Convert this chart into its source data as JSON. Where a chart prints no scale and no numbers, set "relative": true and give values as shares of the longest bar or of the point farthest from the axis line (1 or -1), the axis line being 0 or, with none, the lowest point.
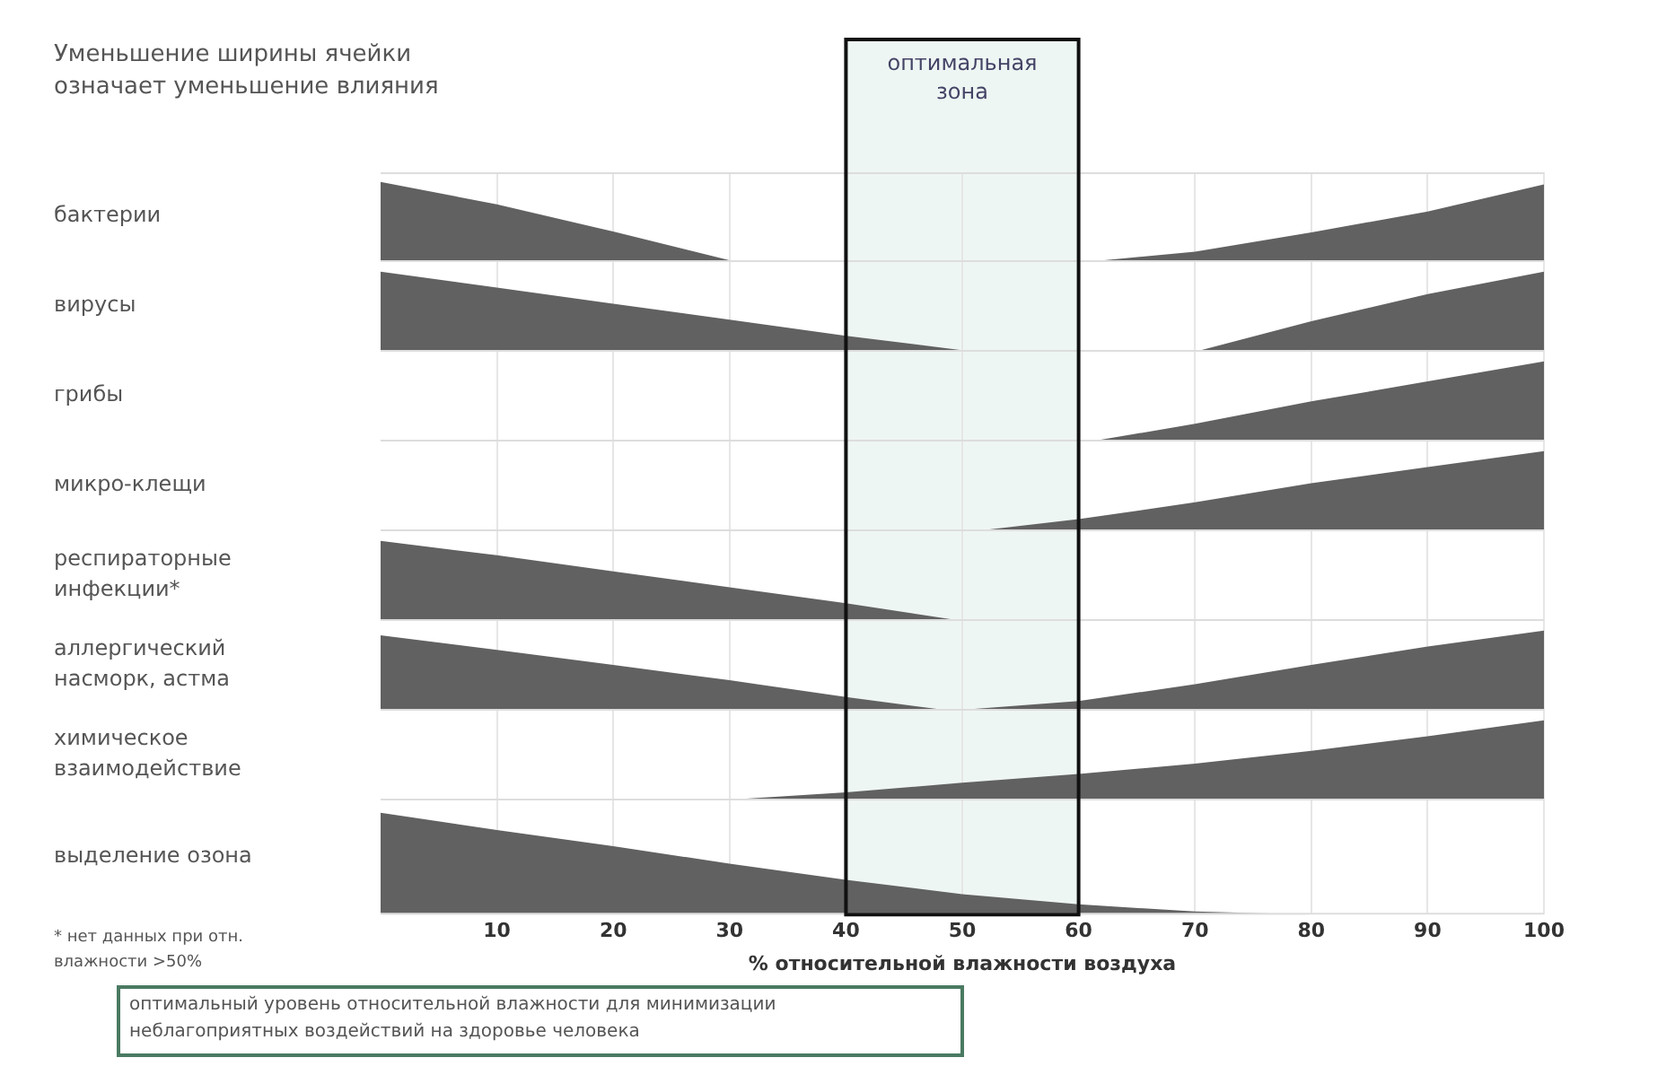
{
  "chart_data": [
    {
      "type": "area",
      "relative": true,
      "title": "Уменьшение ширины ячейки означает уменьшение влияния",
      "ylabel": "бактерии",
      "xlim": [
        0,
        100
      ],
      "xticks": [
        10,
        20,
        30,
        40,
        50,
        60,
        70,
        80,
        90,
        100
      ],
      "grid": "x",
      "tick_labels": false,
      "bands": [
        {
          "axis": "x",
          "from": 40,
          "to": 60,
          "label": "оптимальная зона",
          "color": "#eef6f3"
        }
      ],
      "series": [
        {
          "color": "#616161",
          "x": [
            0,
            10,
            20,
            30.6
          ],
          "values": [
            1,
            0.72,
            0.38,
            0
          ]
        },
        {
          "color": "#616161",
          "x": [
            60.6,
            70,
            80,
            90,
            100
          ],
          "values": [
            0,
            0.13,
            0.37,
            0.63,
            0.97
          ]
        }
      ]
    },
    {
      "type": "area",
      "relative": true,
      "ylabel": "вирусы",
      "xlim": [
        0,
        100
      ],
      "xticks": [
        10,
        20,
        30,
        40,
        50,
        60,
        70,
        80,
        90,
        100
      ],
      "grid": "x",
      "tick_labels": false,
      "bands": [
        {
          "axis": "x",
          "from": 40,
          "to": 60,
          "color": "#eef6f3"
        }
      ],
      "series": [
        {
          "color": "#616161",
          "x": [
            0,
            10,
            20,
            30,
            40,
            51
          ],
          "values": [
            1,
            0.8,
            0.6,
            0.4,
            0.2,
            0
          ]
        },
        {
          "color": "#616161",
          "x": [
            70,
            80,
            90,
            100
          ],
          "values": [
            0,
            0.38,
            0.72,
            1
          ]
        }
      ]
    },
    {
      "type": "area",
      "relative": true,
      "ylabel": "грибы",
      "xlim": [
        0,
        100
      ],
      "xticks": [
        10,
        20,
        30,
        40,
        50,
        60,
        70,
        80,
        90,
        100
      ],
      "grid": "x",
      "tick_labels": false,
      "bands": [
        {
          "axis": "x",
          "from": 40,
          "to": 60,
          "color": "#eef6f3"
        }
      ],
      "series": [
        {
          "color": "#616161",
          "x": [
            61,
            70,
            80,
            90,
            100
          ],
          "values": [
            0,
            0.22,
            0.5,
            0.75,
            1
          ]
        }
      ]
    },
    {
      "type": "area",
      "relative": true,
      "ylabel": "микро-клещи",
      "xlim": [
        0,
        100
      ],
      "xticks": [
        10,
        20,
        30,
        40,
        50,
        60,
        70,
        80,
        90,
        100
      ],
      "grid": "x",
      "tick_labels": false,
      "bands": [
        {
          "axis": "x",
          "from": 40,
          "to": 60,
          "color": "#eef6f3"
        }
      ],
      "series": [
        {
          "color": "#616161",
          "x": [
            51,
            60,
            70,
            80,
            90,
            100
          ],
          "values": [
            0,
            0.15,
            0.36,
            0.6,
            0.8,
            1
          ]
        }
      ]
    },
    {
      "type": "area",
      "relative": true,
      "ylabel": "респираторные инфекции*",
      "xlim": [
        0,
        100
      ],
      "xticks": [
        10,
        20,
        30,
        40,
        50,
        60,
        70,
        80,
        90,
        100
      ],
      "grid": "x",
      "tick_labels": false,
      "bands": [
        {
          "axis": "x",
          "from": 40,
          "to": 60,
          "color": "#eef6f3"
        }
      ],
      "series": [
        {
          "color": "#616161",
          "x": [
            0,
            10,
            20,
            30,
            40,
            50
          ],
          "values": [
            1,
            0.82,
            0.62,
            0.42,
            0.22,
            0
          ]
        }
      ]
    },
    {
      "type": "area",
      "relative": true,
      "ylabel": "аллергический насморк, астма",
      "xlim": [
        0,
        100
      ],
      "xticks": [
        10,
        20,
        30,
        40,
        50,
        60,
        70,
        80,
        90,
        100
      ],
      "grid": "x",
      "tick_labels": false,
      "bands": [
        {
          "axis": "x",
          "from": 40,
          "to": 60,
          "color": "#eef6f3"
        }
      ],
      "series": [
        {
          "color": "#616161",
          "x": [
            0,
            10,
            20,
            30,
            40,
            49,
            60,
            70,
            80,
            90,
            100
          ],
          "values": [
            0.94,
            0.76,
            0.57,
            0.38,
            0.17,
            0,
            0.12,
            0.33,
            0.57,
            0.8,
            1
          ]
        }
      ]
    },
    {
      "type": "area",
      "relative": true,
      "ylabel": "химическое взаимодействие",
      "xlim": [
        0,
        100
      ],
      "xticks": [
        10,
        20,
        30,
        40,
        50,
        60,
        70,
        80,
        90,
        100
      ],
      "grid": "x",
      "tick_labels": false,
      "bands": [
        {
          "axis": "x",
          "from": 40,
          "to": 60,
          "color": "#eef6f3"
        }
      ],
      "series": [
        {
          "color": "#616161",
          "x": [
            29,
            40,
            50,
            60,
            70,
            80,
            90,
            100
          ],
          "values": [
            0,
            0.1,
            0.22,
            0.33,
            0.46,
            0.62,
            0.8,
            1
          ]
        }
      ]
    },
    {
      "type": "area",
      "relative": true,
      "ylabel": "выделение озона",
      "xlabel": "% относительной влажности воздуха",
      "xlim": [
        0,
        100
      ],
      "xticks": [
        10,
        20,
        30,
        40,
        50,
        60,
        70,
        80,
        90,
        100
      ],
      "grid": "x",
      "tick_labels": "x",
      "bands": [
        {
          "axis": "x",
          "from": 40,
          "to": 60,
          "color": "#eef6f3"
        }
      ],
      "annotations": [
        "* нет данных при отн. влажности >50%",
        "оптимальный уровень относительной влажности для минимизации неблагоприятных воздействий на здоровье человека"
      ],
      "series": [
        {
          "color": "#616161",
          "x": [
            0,
            10,
            20,
            30,
            40,
            50,
            60,
            70,
            80
          ],
          "values": [
            1,
            0.83,
            0.67,
            0.5,
            0.34,
            0.2,
            0.1,
            0.03,
            0
          ]
        }
      ]
    }
  ]
}
